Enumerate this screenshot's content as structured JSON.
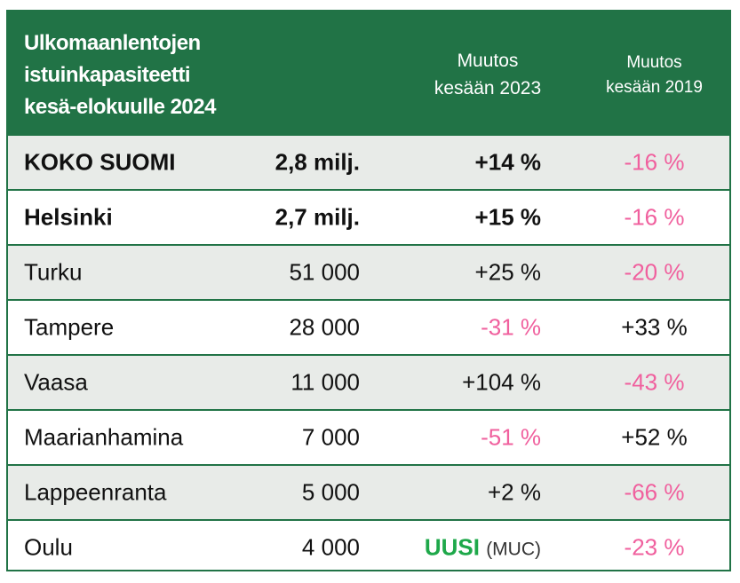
{
  "header": {
    "title_lines": [
      "Ulkomaanlentojen",
      "istuinkapasiteetti",
      "kesä-elokuulle 2024"
    ],
    "change_2023": [
      "Muutos",
      "kesään 2023"
    ],
    "change_2019": [
      "Muutos",
      "kesään 2019"
    ]
  },
  "colors": {
    "header_green": "#217346",
    "negative_pink": "#f0609e",
    "new_green": "#1ea84a"
  },
  "rows": [
    {
      "name": "KOKO SUOMI",
      "value": "2,8 milj.",
      "change_2023": "+14 %",
      "change_2019": "-16 %"
    },
    {
      "name": "Helsinki",
      "value": "2,7 milj.",
      "change_2023": "+15 %",
      "change_2019": "-16 %"
    },
    {
      "name": "Turku",
      "value": "51 000",
      "change_2023": "+25 %",
      "change_2019": "-20 %"
    },
    {
      "name": "Tampere",
      "value": "28 000",
      "change_2023": "-31 %",
      "change_2019": "+33 %"
    },
    {
      "name": "Vaasa",
      "value": "11 000",
      "change_2023": "+104 %",
      "change_2019": "-43 %"
    },
    {
      "name": "Maarianhamina",
      "value": "7 000",
      "change_2023": "-51 %",
      "change_2019": "+52 %"
    },
    {
      "name": "Lappeenranta",
      "value": "5 000",
      "change_2023": "+2 %",
      "change_2019": "-66 %"
    },
    {
      "name": "Oulu",
      "value": "4 000",
      "change_2023_new": "UUSI",
      "change_2023_note": "(MUC)",
      "change_2019": "-23 %"
    }
  ]
}
